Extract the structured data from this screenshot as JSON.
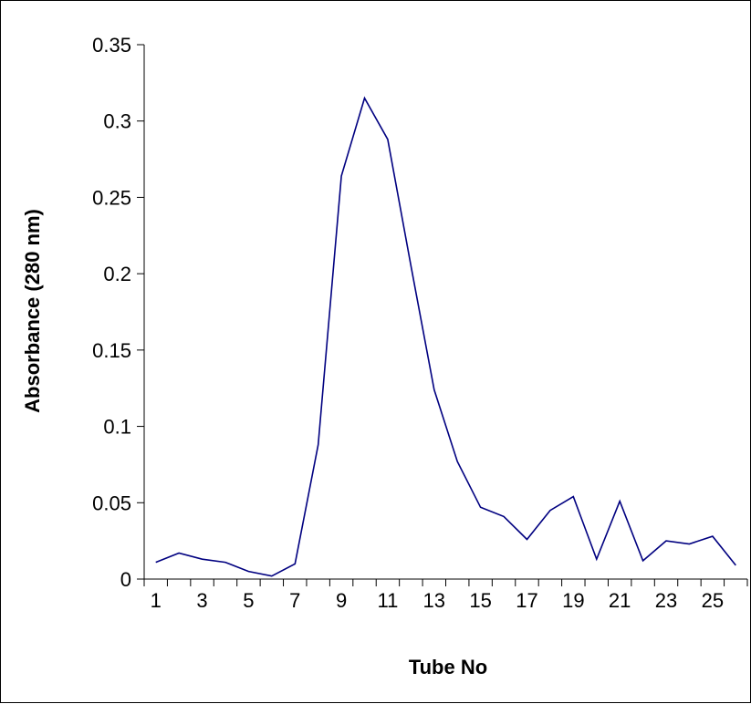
{
  "chart_data": {
    "type": "line",
    "title": "",
    "xlabel": "Tube No",
    "ylabel": "Absorbance (280 nm)",
    "x": [
      1,
      2,
      3,
      4,
      5,
      6,
      7,
      8,
      9,
      10,
      11,
      12,
      13,
      14,
      15,
      16,
      17,
      18,
      19,
      20,
      21,
      22,
      23,
      24,
      25,
      26
    ],
    "x_tick_labels": [
      "1",
      "3",
      "5",
      "7",
      "9",
      "11",
      "13",
      "15",
      "17",
      "19",
      "21",
      "23",
      "25"
    ],
    "y_tick_labels": [
      "0",
      "0.05",
      "0.1",
      "0.15",
      "0.2",
      "0.25",
      "0.3",
      "0.35"
    ],
    "ylim": [
      0,
      0.35
    ],
    "grid": false,
    "legend": "none",
    "series": [
      {
        "values": [
          0.011,
          0.017,
          0.013,
          0.011,
          0.005,
          0.002,
          0.01,
          0.088,
          0.264,
          0.315,
          0.288,
          0.205,
          0.124,
          0.077,
          0.047,
          0.041,
          0.026,
          0.045,
          0.054,
          0.013,
          0.051,
          0.012,
          0.025,
          0.023,
          0.028,
          0.009
        ],
        "color": "#000080"
      }
    ]
  }
}
